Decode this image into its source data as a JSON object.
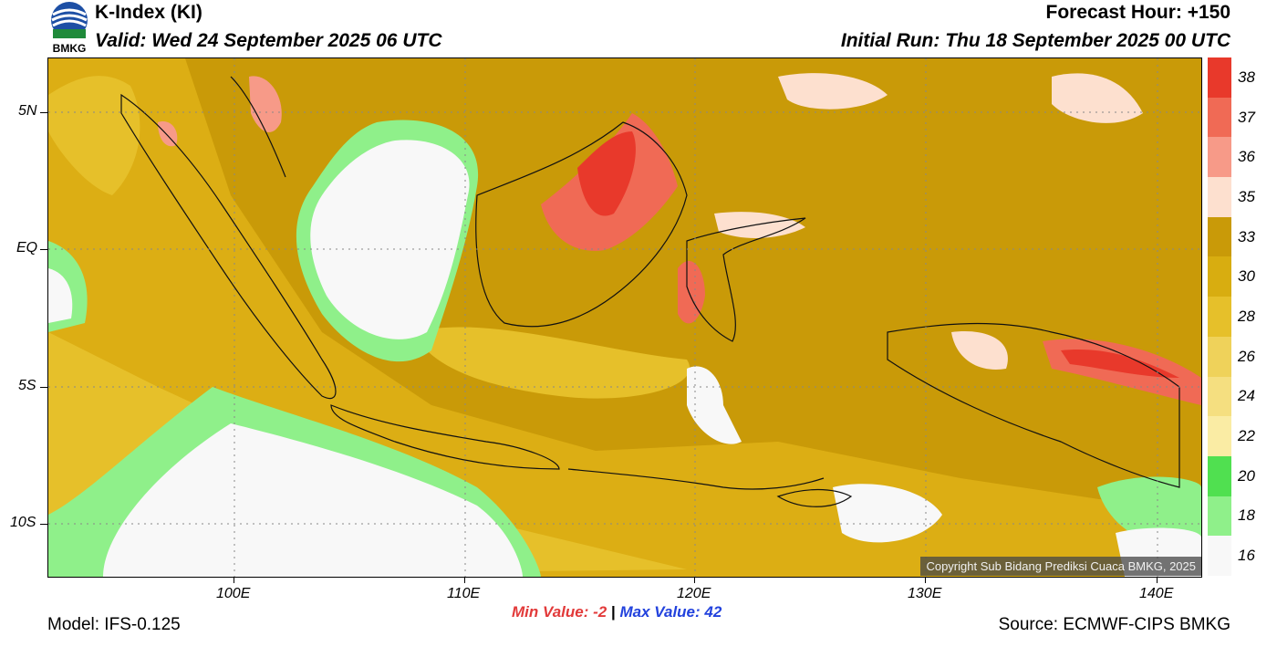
{
  "header": {
    "title": "K-Index (KI)",
    "valid": "Valid: Wed 24 September 2025 06 UTC",
    "forecast_hour": "Forecast Hour: +150",
    "initial_run": "Initial Run: Thu 18 September 2025 00 UTC"
  },
  "logo": {
    "text": "BMKG",
    "icon": "bmkg-logo-icon"
  },
  "map": {
    "lat_labels": [
      "5N",
      "EQ",
      "5S",
      "10S"
    ],
    "lon_labels": [
      "100E",
      "110E",
      "120E",
      "130E",
      "140E"
    ],
    "copyright": "Copyright Sub Bidang Prediksi Cuaca BMKG, 2025"
  },
  "colorbar": {
    "labels": [
      "38",
      "37",
      "36",
      "35",
      "33",
      "30",
      "28",
      "26",
      "24",
      "22",
      "20",
      "18",
      "16"
    ],
    "colors": [
      "#e8392b",
      "#f06a55",
      "#f79a88",
      "#fde0cf",
      "#c99a08",
      "#d8ad10",
      "#e6c02a",
      "#efd25a",
      "#f5df80",
      "#faeca4",
      "#50e050",
      "#8ff08a",
      "#f8f8f8"
    ]
  },
  "stats": {
    "min_label": "Min Value:",
    "min_value": "-2",
    "separator": "|",
    "max_label": "Max Value:",
    "max_value": "42"
  },
  "footer": {
    "model": "Model: IFS-0.125",
    "source": "Source: ECMWF-CIPS BMKG"
  }
}
